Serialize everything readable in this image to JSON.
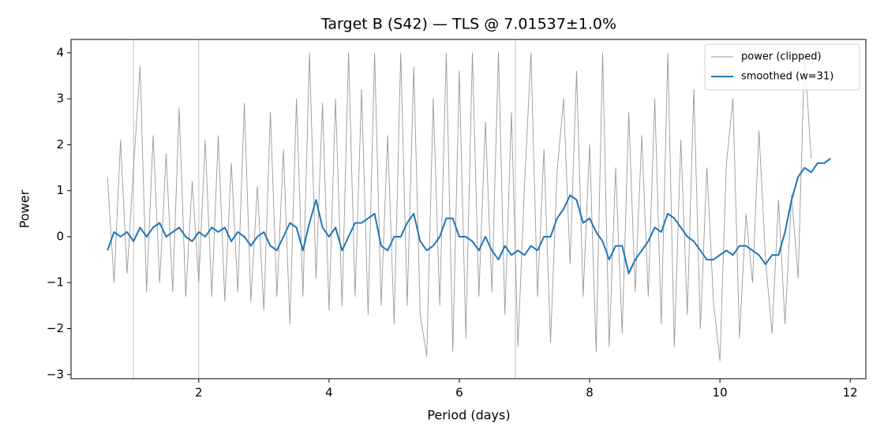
{
  "chart_data": {
    "type": "line",
    "title": "Target B (S42) — TLS @ 7.01537±1.0%",
    "x_label": "Period (days)",
    "y_label": "Power",
    "x": [
      0.6,
      0.7,
      0.8,
      0.9,
      1.0,
      1.1,
      1.2,
      1.3,
      1.4,
      1.5,
      1.6,
      1.7,
      1.8,
      1.9,
      2.0,
      2.1,
      2.2,
      2.3,
      2.4,
      2.5,
      2.6,
      2.7,
      2.8,
      2.9,
      3.0,
      3.1,
      3.2,
      3.3,
      3.4,
      3.5,
      3.6,
      3.7,
      3.8,
      3.9,
      4.0,
      4.1,
      4.2,
      4.3,
      4.4,
      4.5,
      4.6,
      4.7,
      4.8,
      4.9,
      5.0,
      5.1,
      5.2,
      5.3,
      5.4,
      5.5,
      5.6,
      5.7,
      5.8,
      5.9,
      6.0,
      6.1,
      6.2,
      6.3,
      6.4,
      6.5,
      6.6,
      6.7,
      6.8,
      6.9,
      7.0,
      7.1,
      7.2,
      7.3,
      7.4,
      7.5,
      7.6,
      7.7,
      7.8,
      7.9,
      8.0,
      8.1,
      8.2,
      8.3,
      8.4,
      8.5,
      8.6,
      8.7,
      8.8,
      8.9,
      9.0,
      9.1,
      9.2,
      9.3,
      9.4,
      9.5,
      9.6,
      9.7,
      9.8,
      9.9,
      10.0,
      10.1,
      10.2,
      10.3,
      10.4,
      10.5,
      10.6,
      10.7,
      10.8,
      10.9,
      11.0,
      11.1,
      11.2,
      11.3,
      11.4,
      11.5,
      11.6,
      11.7
    ],
    "series": [
      {
        "name": "power (clipped)",
        "color": "#999999",
        "width": 0.9,
        "values": [
          1.3,
          -1.0,
          2.1,
          -0.8,
          1.5,
          3.7,
          -1.2,
          2.2,
          -1.0,
          1.8,
          -1.2,
          2.8,
          -1.3,
          1.2,
          -1.0,
          2.1,
          -1.3,
          2.2,
          -1.4,
          1.6,
          -1.2,
          2.9,
          -1.4,
          1.1,
          -1.6,
          2.7,
          -1.3,
          1.9,
          -1.9,
          3.0,
          -1.3,
          4.0,
          -0.9,
          2.9,
          -1.6,
          3.0,
          -1.5,
          4.0,
          -1.3,
          3.2,
          -1.7,
          4.0,
          -1.5,
          2.2,
          -1.9,
          4.0,
          -1.5,
          3.7,
          -1.7,
          -2.6,
          3.0,
          -1.5,
          4.0,
          -2.5,
          3.6,
          -2.2,
          4.0,
          -1.3,
          2.5,
          -1.2,
          4.0,
          -1.7,
          2.7,
          -2.4,
          1.1,
          4.0,
          -1.3,
          1.9,
          -2.3,
          1.4,
          3.0,
          -0.6,
          3.6,
          -1.3,
          2.0,
          -2.5,
          4.0,
          -2.4,
          1.5,
          -2.1,
          2.7,
          -1.2,
          2.2,
          -1.3,
          3.0,
          -1.9,
          4.0,
          -2.4,
          2.1,
          -1.7,
          3.2,
          -2.0,
          1.5,
          -1.4,
          -2.7,
          1.6,
          3.0,
          -2.2,
          0.5,
          -1.0,
          2.3,
          -0.5,
          -2.1,
          0.8,
          -1.9,
          0.9,
          -0.9,
          4.0,
          1.7,
          null,
          null,
          null
        ]
      },
      {
        "name": "smoothed (w=31)",
        "color": "#1f77b4",
        "width": 2,
        "values": [
          -0.3,
          0.1,
          0.0,
          0.1,
          -0.1,
          0.2,
          0.0,
          0.2,
          0.3,
          0.0,
          0.1,
          0.2,
          0.0,
          -0.1,
          0.1,
          0.0,
          0.2,
          0.1,
          0.2,
          -0.1,
          0.1,
          0.0,
          -0.2,
          0.0,
          0.1,
          -0.2,
          -0.3,
          0.0,
          0.3,
          0.2,
          -0.3,
          0.3,
          0.8,
          0.2,
          0.0,
          0.2,
          -0.3,
          0.0,
          0.3,
          0.3,
          0.4,
          0.5,
          -0.2,
          -0.3,
          0.0,
          0.0,
          0.3,
          0.5,
          -0.1,
          -0.3,
          -0.2,
          0.0,
          0.4,
          0.4,
          0.0,
          0.0,
          -0.1,
          -0.3,
          0.0,
          -0.3,
          -0.5,
          -0.2,
          -0.4,
          -0.3,
          -0.4,
          -0.2,
          -0.3,
          0.0,
          0.0,
          0.4,
          0.6,
          0.9,
          0.8,
          0.3,
          0.4,
          0.1,
          -0.1,
          -0.5,
          -0.2,
          -0.2,
          -0.8,
          -0.5,
          -0.3,
          -0.1,
          0.2,
          0.1,
          0.5,
          0.4,
          0.2,
          0.0,
          -0.1,
          -0.3,
          -0.5,
          -0.5,
          -0.4,
          -0.3,
          -0.4,
          -0.2,
          -0.2,
          -0.3,
          -0.4,
          -0.6,
          -0.4,
          -0.4,
          0.1,
          0.8,
          1.3,
          1.5,
          1.4,
          1.6,
          1.6,
          1.7
        ]
      }
    ],
    "vlines": [
      1.0,
      2.0,
      6.86
    ],
    "xlim": [
      0.04,
      12.24
    ],
    "ylim": [
      -3.09,
      4.29
    ],
    "xticks": [
      2,
      4,
      6,
      8,
      10,
      12
    ],
    "yticks": [
      {
        "value": -3,
        "label": "−3"
      },
      {
        "value": -2,
        "label": "−2"
      },
      {
        "value": -1,
        "label": "−1"
      },
      0,
      1,
      2,
      3,
      4
    ],
    "legend": "upper right"
  }
}
